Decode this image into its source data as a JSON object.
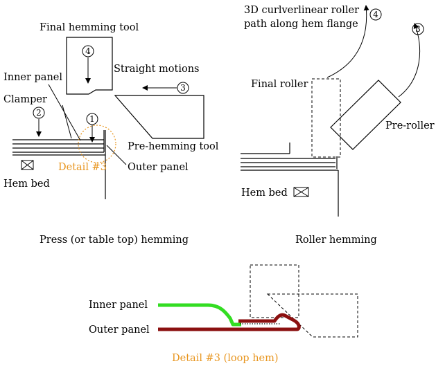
{
  "press": {
    "final_hemming_tool": "Final hemming  tool",
    "straight_motions": "Straight motions",
    "inner_panel": "Inner panel",
    "clamper": "Clamper",
    "pre_hemming_tool": "Pre-hemming  tool",
    "detail": "Detail #3",
    "outer_panel": "Outer panel",
    "hem_bed": "Hem bed",
    "caption": "Press (or table top) hemming",
    "step1": "1",
    "step2": "2",
    "step3": "3",
    "step4": "4"
  },
  "roller": {
    "path_line1": "3D curlverlinear roller",
    "path_line2": "path along hem flange",
    "final_roller": "Final roller",
    "pre_roller": "Pre-roller",
    "hem_bed": "Hem bed",
    "caption": "Roller hemming",
    "step3": "3",
    "step4": "4"
  },
  "detail3": {
    "inner_panel": "Inner panel",
    "outer_panel": "Outer panel",
    "caption": "Detail #3 (loop hem)"
  },
  "colors": {
    "inner_panel_green": "#33dd22",
    "outer_panel_maroon": "#8b1010",
    "label_orange": "#e8951e"
  }
}
